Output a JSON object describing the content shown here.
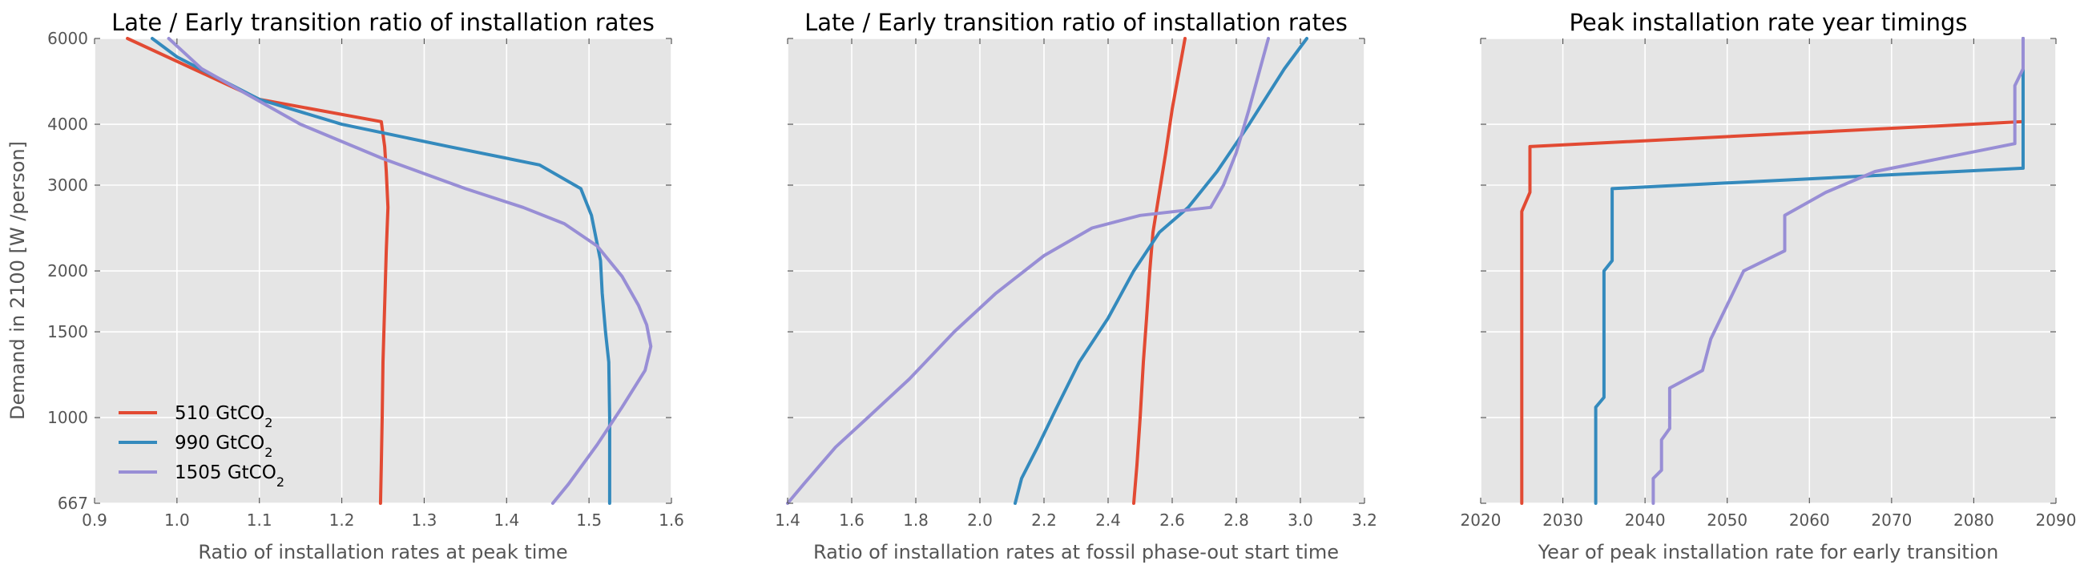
{
  "figure": {
    "ylabel": "Demand in 2100 [W /person]"
  },
  "colors": {
    "510": "#e24a33",
    "990": "#348abd",
    "1505": "#988ed5"
  },
  "legend": {
    "placement": "lower-left",
    "entries": [
      {
        "label": "510 GtCO",
        "sub": "2",
        "color": "#e24a33"
      },
      {
        "label": "990 GtCO",
        "sub": "2",
        "color": "#348abd"
      },
      {
        "label": "1505 GtCO",
        "sub": "2",
        "color": "#988ed5"
      }
    ]
  },
  "chart_data": [
    {
      "type": "line",
      "title": "Late / Early transition ratio of installation rates",
      "xlabel": "Ratio of installation rates at peak time",
      "ylabel": "Demand in 2100 [W /person]",
      "xlim": [
        0.9,
        1.6
      ],
      "ylim": [
        667,
        6000
      ],
      "yscale": "log",
      "xticks": [
        0.9,
        1.0,
        1.1,
        1.2,
        1.3,
        1.4,
        1.5,
        1.6
      ],
      "xticklabels": [
        "0.9",
        "1.0",
        "1.1",
        "1.2",
        "1.3",
        "1.4",
        "1.5",
        "1.6"
      ],
      "yticks": [
        667,
        1000,
        1500,
        2000,
        3000,
        4000,
        6000
      ],
      "yticklabels": [
        "667",
        "1000",
        "1500",
        "2000",
        "3000",
        "4000",
        "6000"
      ],
      "grid": true,
      "series": [
        {
          "name": "510 GtCO2",
          "color": "#e24a33",
          "points": [
            [
              1.247,
              667
            ],
            [
              1.248,
              800
            ],
            [
              1.249,
              1000
            ],
            [
              1.25,
              1300
            ],
            [
              1.252,
              1700
            ],
            [
              1.254,
              2200
            ],
            [
              1.256,
              2700
            ],
            [
              1.254,
              3200
            ],
            [
              1.252,
              3600
            ],
            [
              1.248,
              4050
            ],
            [
              1.1,
              4500
            ],
            [
              0.94,
              6000
            ]
          ]
        },
        {
          "name": "990 GtCO2",
          "color": "#348abd",
          "points": [
            [
              1.525,
              667
            ],
            [
              1.525,
              800
            ],
            [
              1.525,
              1000
            ],
            [
              1.524,
              1300
            ],
            [
              1.52,
              1500
            ],
            [
              1.516,
              1800
            ],
            [
              1.514,
              2100
            ],
            [
              1.503,
              2600
            ],
            [
              1.49,
              2950
            ],
            [
              1.44,
              3300
            ],
            [
              1.33,
              3600
            ],
            [
              1.2,
              4000
            ],
            [
              1.1,
              4500
            ],
            [
              1.0,
              5500
            ],
            [
              0.97,
              6000
            ]
          ]
        },
        {
          "name": "1505 GtCO2",
          "color": "#988ed5",
          "points": [
            [
              1.456,
              667
            ],
            [
              1.475,
              730
            ],
            [
              1.51,
              880
            ],
            [
              1.54,
              1050
            ],
            [
              1.568,
              1250
            ],
            [
              1.575,
              1400
            ],
            [
              1.57,
              1550
            ],
            [
              1.56,
              1700
            ],
            [
              1.54,
              1950
            ],
            [
              1.51,
              2250
            ],
            [
              1.47,
              2500
            ],
            [
              1.42,
              2700
            ],
            [
              1.35,
              2950
            ],
            [
              1.25,
              3400
            ],
            [
              1.15,
              4000
            ],
            [
              1.03,
              5200
            ],
            [
              0.99,
              6000
            ]
          ]
        }
      ]
    },
    {
      "type": "line",
      "title": "Late / Early transition ratio of installation rates",
      "xlabel": "Ratio of installation rates at fossil phase-out start time",
      "xlim": [
        1.4,
        3.2
      ],
      "ylim": [
        667,
        6000
      ],
      "yscale": "log",
      "xticks": [
        1.4,
        1.6,
        1.8,
        2.0,
        2.2,
        2.4,
        2.6,
        2.8,
        3.0,
        3.2
      ],
      "xticklabels": [
        "1.4",
        "1.6",
        "1.8",
        "2.0",
        "2.2",
        "2.4",
        "2.6",
        "2.8",
        "3.0",
        "3.2"
      ],
      "grid": true,
      "series": [
        {
          "name": "510 GtCO2",
          "color": "#e24a33",
          "points": [
            [
              2.48,
              667
            ],
            [
              2.49,
              800
            ],
            [
              2.5,
              1000
            ],
            [
              2.51,
              1300
            ],
            [
              2.52,
              1600
            ],
            [
              2.53,
              2000
            ],
            [
              2.54,
              2400
            ],
            [
              2.56,
              2900
            ],
            [
              2.58,
              3500
            ],
            [
              2.6,
              4300
            ],
            [
              2.64,
              6000
            ]
          ]
        },
        {
          "name": "990 GtCO2",
          "color": "#348abd",
          "points": [
            [
              2.11,
              667
            ],
            [
              2.13,
              750
            ],
            [
              2.18,
              870
            ],
            [
              2.24,
              1050
            ],
            [
              2.31,
              1300
            ],
            [
              2.4,
              1600
            ],
            [
              2.48,
              2000
            ],
            [
              2.56,
              2400
            ],
            [
              2.65,
              2700
            ],
            [
              2.74,
              3200
            ],
            [
              2.84,
              4000
            ],
            [
              2.95,
              5200
            ],
            [
              3.02,
              6000
            ]
          ]
        },
        {
          "name": "1505 GtCO2",
          "color": "#988ed5",
          "points": [
            [
              1.4,
              667
            ],
            [
              1.45,
              730
            ],
            [
              1.55,
              870
            ],
            [
              1.65,
              1000
            ],
            [
              1.78,
              1200
            ],
            [
              1.92,
              1500
            ],
            [
              2.05,
              1800
            ],
            [
              2.2,
              2150
            ],
            [
              2.35,
              2450
            ],
            [
              2.5,
              2600
            ],
            [
              2.72,
              2700
            ],
            [
              2.76,
              3000
            ],
            [
              2.8,
              3500
            ],
            [
              2.84,
              4300
            ],
            [
              2.9,
              6000
            ]
          ]
        }
      ]
    },
    {
      "type": "line",
      "title": "Peak installation rate year timings",
      "xlabel": "Year of peak installation rate for early transition",
      "xlim": [
        2020,
        2090
      ],
      "ylim": [
        667,
        6000
      ],
      "yscale": "log",
      "xticks": [
        2020,
        2030,
        2040,
        2050,
        2060,
        2070,
        2080,
        2090
      ],
      "xticklabels": [
        "2020",
        "2030",
        "2040",
        "2050",
        "2060",
        "2070",
        "2080",
        "2090"
      ],
      "grid": true,
      "series": [
        {
          "name": "510 GtCO2",
          "color": "#e24a33",
          "points": [
            [
              2025,
              667
            ],
            [
              2025,
              2650
            ],
            [
              2026,
              2900
            ],
            [
              2026,
              3600
            ],
            [
              2086,
              4050
            ],
            [
              2086,
              6000
            ]
          ]
        },
        {
          "name": "990 GtCO2",
          "color": "#348abd",
          "points": [
            [
              2034,
              667
            ],
            [
              2034,
              1050
            ],
            [
              2035,
              1100
            ],
            [
              2035,
              2000
            ],
            [
              2036,
              2100
            ],
            [
              2036,
              2950
            ],
            [
              2086,
              3250
            ],
            [
              2086,
              6000
            ]
          ]
        },
        {
          "name": "1505 GtCO2",
          "color": "#988ed5",
          "points": [
            [
              2041,
              667
            ],
            [
              2041,
              750
            ],
            [
              2042,
              780
            ],
            [
              2042,
              900
            ],
            [
              2043,
              950
            ],
            [
              2043,
              1150
            ],
            [
              2047,
              1250
            ],
            [
              2048,
              1450
            ],
            [
              2052,
              2000
            ],
            [
              2057,
              2200
            ],
            [
              2057,
              2600
            ],
            [
              2062,
              2900
            ],
            [
              2068,
              3200
            ],
            [
              2085,
              3650
            ],
            [
              2085,
              4800
            ],
            [
              2086,
              5200
            ],
            [
              2086,
              6000
            ]
          ]
        }
      ]
    }
  ]
}
